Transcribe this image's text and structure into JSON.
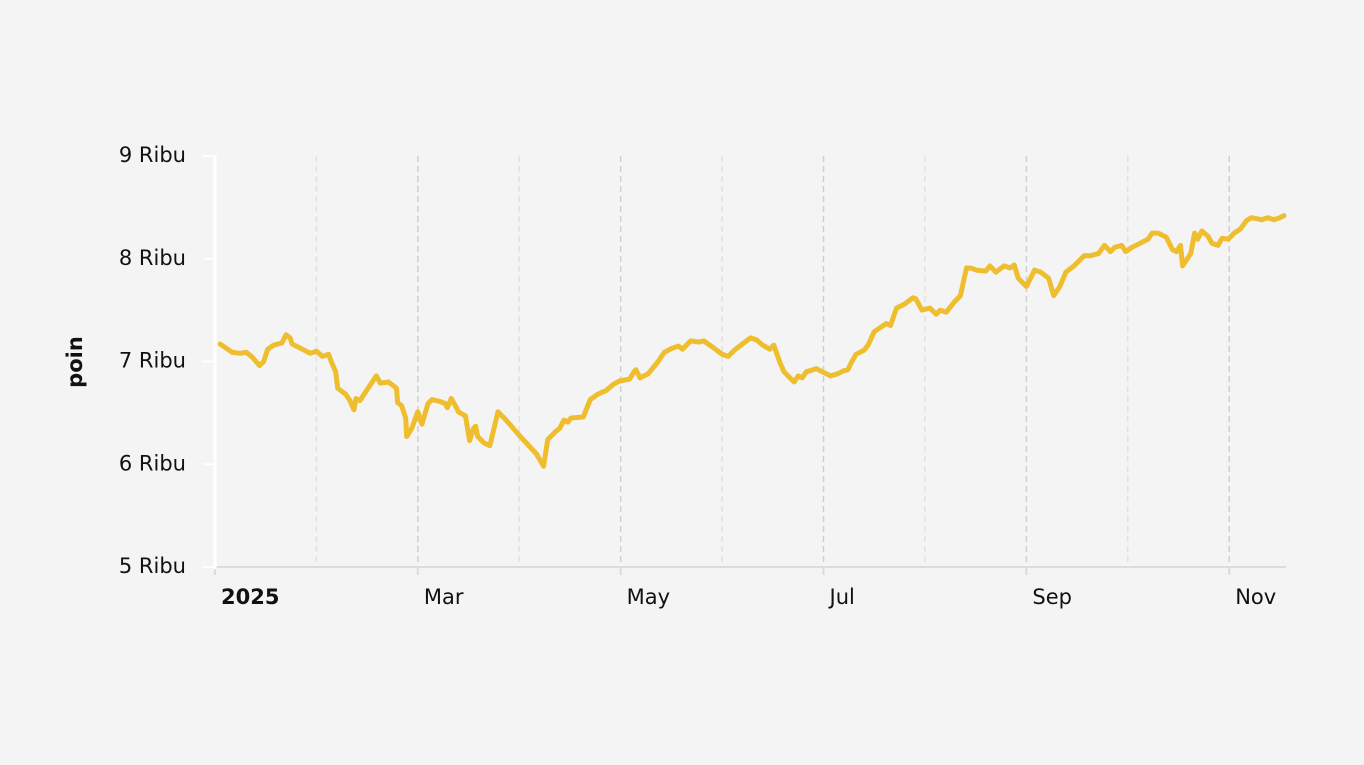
{
  "chart_data": {
    "type": "line",
    "y_label": "poin",
    "x": [
      0.05,
      0.17,
      0.25,
      0.31,
      0.36,
      0.44,
      0.48,
      0.52,
      0.58,
      0.66,
      0.7,
      0.74,
      0.76,
      0.84,
      0.94,
      1.0,
      1.06,
      1.12,
      1.15,
      1.19,
      1.21,
      1.29,
      1.33,
      1.37,
      1.39,
      1.43,
      1.51,
      1.59,
      1.63,
      1.71,
      1.79,
      1.8,
      1.84,
      1.88,
      1.89,
      1.94,
      2.0,
      2.04,
      2.1,
      2.14,
      2.22,
      2.27,
      2.29,
      2.33,
      2.38,
      2.4,
      2.47,
      2.51,
      2.55,
      2.57,
      2.59,
      2.65,
      2.71,
      2.79,
      2.87,
      3.01,
      3.17,
      3.24,
      3.28,
      3.36,
      3.4,
      3.44,
      3.48,
      3.51,
      3.63,
      3.7,
      3.73,
      3.77,
      3.86,
      3.93,
      3.99,
      4.09,
      4.13,
      4.15,
      4.19,
      4.27,
      4.37,
      4.43,
      4.51,
      4.57,
      4.61,
      4.69,
      4.77,
      4.82,
      4.92,
      5.0,
      5.06,
      5.12,
      5.2,
      5.28,
      5.34,
      5.4,
      5.47,
      5.51,
      5.57,
      5.61,
      5.65,
      5.71,
      5.75,
      5.79,
      5.83,
      5.93,
      5.99,
      6.07,
      6.14,
      6.2,
      6.24,
      6.28,
      6.32,
      6.4,
      6.44,
      6.5,
      6.56,
      6.62,
      6.66,
      6.72,
      6.8,
      6.88,
      6.91,
      6.97,
      7.05,
      7.11,
      7.15,
      7.21,
      7.29,
      7.35,
      7.41,
      7.45,
      7.51,
      7.6,
      7.64,
      7.7,
      7.78,
      7.84,
      7.88,
      7.92,
      8.0,
      8.08,
      8.14,
      8.22,
      8.27,
      8.33,
      8.39,
      8.47,
      8.53,
      8.57,
      8.63,
      8.71,
      8.77,
      8.83,
      8.87,
      8.94,
      8.98,
      9.04,
      9.12,
      9.2,
      9.24,
      9.3,
      9.38,
      9.44,
      9.48,
      9.52,
      9.54,
      9.62,
      9.66,
      9.69,
      9.73,
      9.79,
      9.83,
      9.89,
      9.93,
      9.99,
      10.05,
      10.11,
      10.17,
      10.22,
      10.32,
      10.38,
      10.44,
      10.5,
      10.54
    ],
    "series": [
      {
        "name": "poin",
        "color": "#efbe2f",
        "values": [
          7170,
          7090,
          7080,
          7090,
          7050,
          6960,
          7000,
          7120,
          7160,
          7180,
          7260,
          7230,
          7170,
          7130,
          7080,
          7100,
          7050,
          7070,
          6990,
          6900,
          6740,
          6680,
          6620,
          6530,
          6640,
          6620,
          6740,
          6860,
          6790,
          6800,
          6740,
          6600,
          6570,
          6450,
          6270,
          6350,
          6510,
          6390,
          6590,
          6630,
          6610,
          6590,
          6550,
          6640,
          6550,
          6510,
          6470,
          6230,
          6350,
          6370,
          6270,
          6210,
          6180,
          6510,
          6430,
          6270,
          6100,
          5980,
          6240,
          6320,
          6350,
          6430,
          6410,
          6450,
          6460,
          6630,
          6650,
          6680,
          6720,
          6780,
          6810,
          6830,
          6900,
          6920,
          6840,
          6880,
          7000,
          7090,
          7130,
          7150,
          7120,
          7200,
          7190,
          7200,
          7130,
          7070,
          7050,
          7110,
          7170,
          7230,
          7210,
          7160,
          7120,
          7160,
          6990,
          6900,
          6860,
          6800,
          6860,
          6840,
          6900,
          6930,
          6900,
          6860,
          6880,
          6910,
          6920,
          7000,
          7070,
          7110,
          7160,
          7290,
          7330,
          7370,
          7350,
          7520,
          7560,
          7620,
          7610,
          7500,
          7520,
          7460,
          7500,
          7480,
          7580,
          7640,
          7910,
          7910,
          7890,
          7880,
          7930,
          7870,
          7930,
          7910,
          7940,
          7810,
          7730,
          7890,
          7870,
          7810,
          7640,
          7730,
          7870,
          7930,
          7990,
          8030,
          8030,
          8050,
          8130,
          8070,
          8110,
          8130,
          8070,
          8110,
          8150,
          8190,
          8250,
          8250,
          8210,
          8090,
          8070,
          8130,
          7930,
          8050,
          8250,
          8190,
          8270,
          8220,
          8150,
          8130,
          8200,
          8190,
          8250,
          8290,
          8370,
          8400,
          8380,
          8400,
          8380,
          8400,
          8420
        ]
      }
    ],
    "xlim": [
      0,
      10.56
    ],
    "xticks": [
      {
        "value": 0,
        "label": "2025"
      },
      {
        "value": 1,
        "label": null
      },
      {
        "value": 2,
        "label": "Mar"
      },
      {
        "value": 3,
        "label": null
      },
      {
        "value": 4,
        "label": "May"
      },
      {
        "value": 5,
        "label": null
      },
      {
        "value": 6,
        "label": "Jul"
      },
      {
        "value": 7,
        "label": null
      },
      {
        "value": 8,
        "label": "Sep"
      },
      {
        "value": 9,
        "label": null
      },
      {
        "value": 10,
        "label": "Nov"
      }
    ],
    "ylim": [
      5000,
      9000
    ],
    "yticks": [
      {
        "value": 5000,
        "label": "5 Ribu"
      },
      {
        "value": 6000,
        "label": "6 Ribu"
      },
      {
        "value": 7000,
        "label": "7 Ribu"
      },
      {
        "value": 8000,
        "label": "8 Ribu"
      },
      {
        "value": 9000,
        "label": "9 Ribu"
      }
    ],
    "grid": true
  }
}
